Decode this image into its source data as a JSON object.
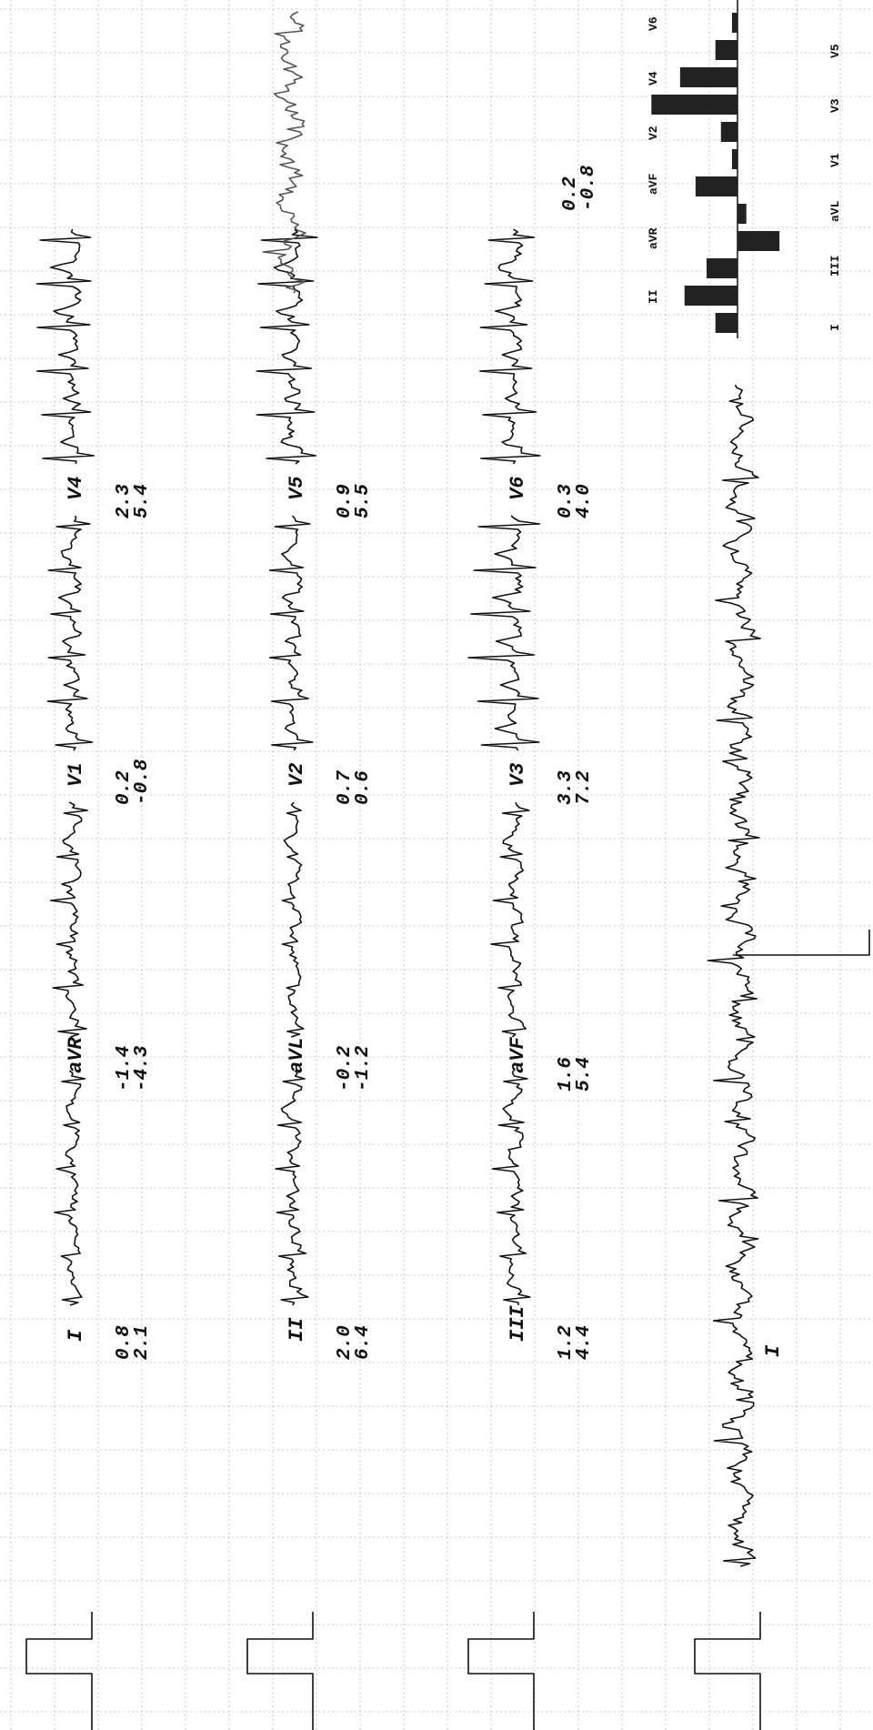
{
  "leads": [
    {
      "label": "I",
      "values": [
        "0.8",
        "2.1"
      ]
    },
    {
      "label": "aVR",
      "values": [
        "-1.4",
        "-4.3"
      ]
    },
    {
      "label": "V1",
      "values": [
        "0.2",
        "-0.8"
      ]
    },
    {
      "label": "V4",
      "values": [
        "2.3",
        "5.4"
      ]
    },
    {
      "label": "II",
      "values": [
        "2.0",
        "6.4"
      ]
    },
    {
      "label": "aVL",
      "values": [
        "-0.2",
        "-1.2"
      ]
    },
    {
      "label": "V2",
      "values": [
        "0.7",
        "0.6"
      ]
    },
    {
      "label": "V5",
      "values": [
        "0.9",
        "5.5"
      ]
    },
    {
      "label": "III",
      "values": [
        "1.2",
        "4.4"
      ]
    },
    {
      "label": "aVF",
      "values": [
        "1.6",
        "5.4"
      ]
    },
    {
      "label": "V3",
      "values": [
        "3.3",
        "7.2"
      ]
    },
    {
      "label": "V6",
      "values": [
        "0.3",
        "4.0"
      ]
    }
  ],
  "rhythm": {
    "label": "I"
  },
  "summary": {
    "values": [
      "0.2",
      "-0.8"
    ]
  },
  "bars": {
    "labels": [
      "I",
      "II",
      "III",
      "aVR",
      "aVL",
      "aVF",
      "V1",
      "V2",
      "V3",
      "V4",
      "V5",
      "V6"
    ],
    "values": [
      20,
      48,
      28,
      -38,
      -8,
      38,
      5,
      15,
      78,
      52,
      20,
      5
    ]
  }
}
